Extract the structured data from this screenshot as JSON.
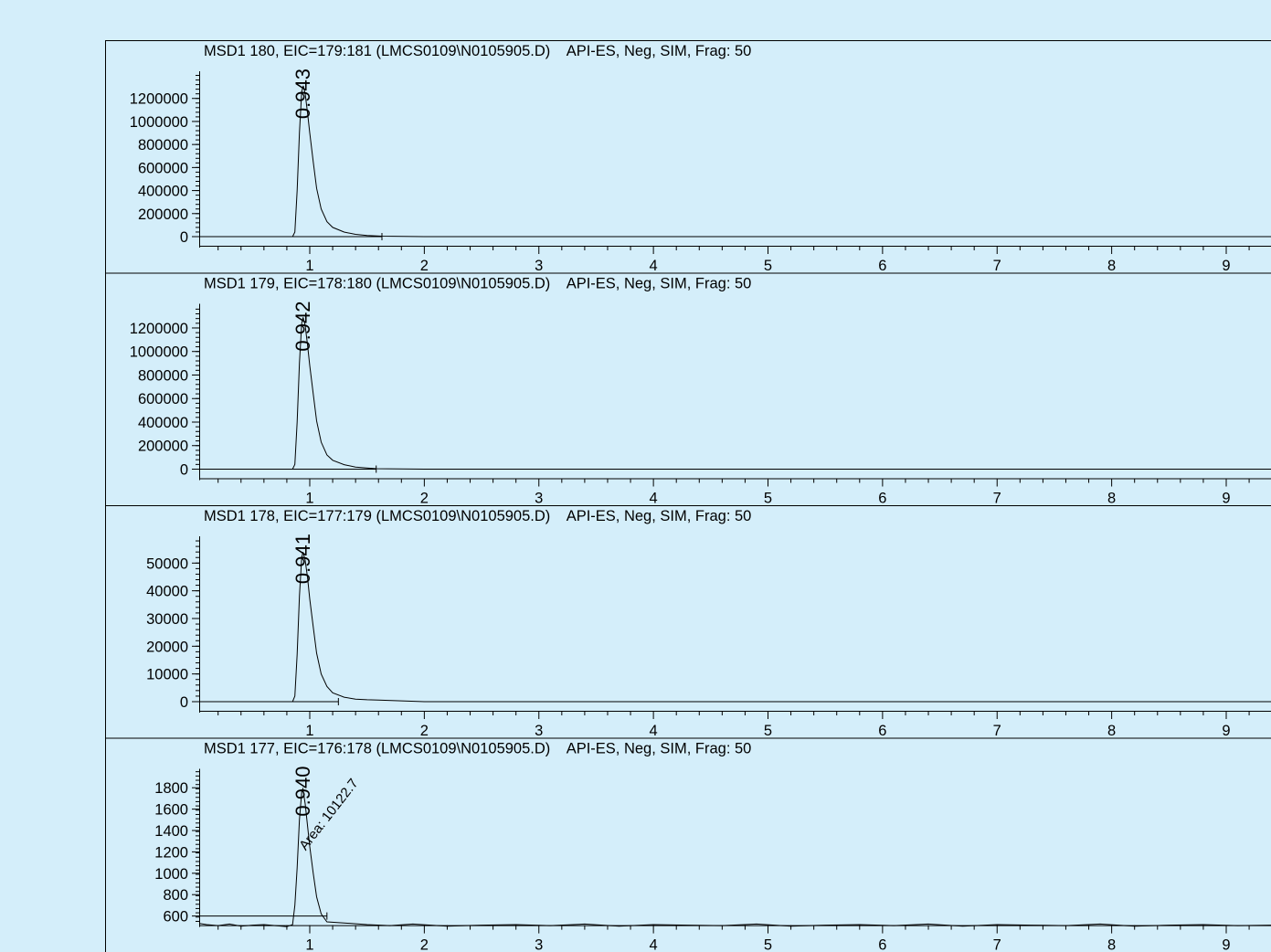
{
  "background": "#d4eefa",
  "line_color": "#000000",
  "chart_data": [
    {
      "type": "line",
      "title": "MSD1 180, EIC=179:181 (LMCS0109\\N0105905.D)    API-ES, Neg, SIM, Frag: 50",
      "xlabel": "",
      "ylabel": "",
      "x_ticks": [
        1,
        2,
        3,
        4,
        5,
        6,
        7,
        8,
        9
      ],
      "y_ticks": [
        0,
        200000,
        400000,
        600000,
        800000,
        1000000,
        1200000
      ],
      "xlim": [
        0.0,
        9.4
      ],
      "ylim": [
        0,
        1420000
      ],
      "peak_label": "0.943",
      "area_label": "",
      "baseline_end": 1.63,
      "series": [
        {
          "x": [
            0.0,
            0.85,
            0.87,
            0.89,
            0.91,
            0.93,
            0.943,
            0.96,
            0.98,
            1.0,
            1.03,
            1.06,
            1.1,
            1.15,
            1.2,
            1.3,
            1.4,
            1.5,
            1.63,
            2.0,
            9.4
          ],
          "y": [
            0,
            0,
            40000,
            400000,
            900000,
            1260000,
            1310000,
            1240000,
            1080000,
            900000,
            650000,
            420000,
            240000,
            130000,
            80000,
            40000,
            20000,
            10000,
            4000,
            0,
            0
          ]
        }
      ]
    },
    {
      "type": "line",
      "title": "MSD1 179, EIC=178:180 (LMCS0109\\N0105905.D)    API-ES, Neg, SIM, Frag: 50",
      "xlabel": "",
      "ylabel": "",
      "x_ticks": [
        1,
        2,
        3,
        4,
        5,
        6,
        7,
        8,
        9
      ],
      "y_ticks": [
        0,
        200000,
        400000,
        600000,
        800000,
        1000000,
        1200000
      ],
      "xlim": [
        0.0,
        9.4
      ],
      "ylim": [
        0,
        1390000
      ],
      "peak_label": "0.942",
      "area_label": "",
      "baseline_end": 1.58,
      "series": [
        {
          "x": [
            0.0,
            0.85,
            0.87,
            0.89,
            0.91,
            0.93,
            0.942,
            0.96,
            0.98,
            1.0,
            1.03,
            1.06,
            1.1,
            1.15,
            1.2,
            1.3,
            1.4,
            1.5,
            1.58,
            2.0,
            9.4
          ],
          "y": [
            0,
            0,
            40000,
            400000,
            900000,
            1240000,
            1290000,
            1220000,
            1060000,
            880000,
            640000,
            410000,
            230000,
            120000,
            75000,
            38000,
            18000,
            9000,
            4000,
            0,
            0
          ]
        }
      ]
    },
    {
      "type": "line",
      "title": "MSD1 178, EIC=177:179 (LMCS0109\\N0105905.D)    API-ES, Neg, SIM, Frag: 50",
      "xlabel": "",
      "ylabel": "",
      "x_ticks": [
        1,
        2,
        3,
        4,
        5,
        6,
        7,
        8,
        9
      ],
      "y_ticks": [
        0,
        10000,
        20000,
        30000,
        40000,
        50000
      ],
      "xlim": [
        0.0,
        9.4
      ],
      "ylim": [
        0,
        59000
      ],
      "peak_label": "0.941",
      "area_label": "",
      "baseline_end": 1.25,
      "series": [
        {
          "x": [
            0.0,
            0.85,
            0.87,
            0.89,
            0.91,
            0.93,
            0.941,
            0.96,
            0.98,
            1.0,
            1.03,
            1.06,
            1.1,
            1.15,
            1.2,
            1.3,
            1.4,
            1.5,
            1.6,
            2.0,
            9.4
          ],
          "y": [
            0,
            0,
            2000,
            17000,
            38000,
            52000,
            54000,
            51000,
            45000,
            37000,
            27000,
            17500,
            10000,
            5500,
            3200,
            1600,
            900,
            700,
            600,
            0,
            0
          ]
        }
      ]
    },
    {
      "type": "line",
      "title": "MSD1 177, EIC=176:178 (LMCS0109\\N0105905.D)    API-ES, Neg, SIM, Frag: 50",
      "xlabel": "",
      "ylabel": "",
      "x_ticks": [
        1,
        2,
        3,
        4,
        5,
        6,
        7,
        8,
        9
      ],
      "y_ticks": [
        600,
        800,
        1000,
        1200,
        1400,
        1600,
        1800
      ],
      "xlim": [
        0.0,
        9.4
      ],
      "ylim": [
        430,
        1960
      ],
      "peak_label": "0.940",
      "area_label": "Area: 10122.7",
      "baseline_end": 1.15,
      "series": [
        {
          "x": [
            0.0,
            0.1,
            0.2,
            0.3,
            0.4,
            0.5,
            0.6,
            0.7,
            0.8,
            0.85,
            0.87,
            0.89,
            0.91,
            0.93,
            0.94,
            0.96,
            0.98,
            1.0,
            1.03,
            1.06,
            1.1,
            1.15,
            1.3,
            1.5,
            1.7,
            1.9,
            2.2,
            2.5,
            2.8,
            3.1,
            3.4,
            3.7,
            4.0,
            4.3,
            4.6,
            4.9,
            5.2,
            5.5,
            5.8,
            6.1,
            6.4,
            6.7,
            7.0,
            7.3,
            7.6,
            7.9,
            8.2,
            8.5,
            8.8,
            9.1,
            9.4
          ],
          "y": [
            530,
            520,
            510,
            525,
            505,
            515,
            520,
            510,
            500,
            520,
            700,
            1050,
            1500,
            1760,
            1790,
            1650,
            1450,
            1250,
            1000,
            780,
            620,
            545,
            535,
            520,
            510,
            525,
            505,
            515,
            520,
            510,
            525,
            505,
            520,
            515,
            510,
            525,
            505,
            515,
            520,
            510,
            525,
            505,
            520,
            515,
            510,
            525,
            505,
            515,
            520,
            510,
            515
          ]
        }
      ]
    }
  ]
}
